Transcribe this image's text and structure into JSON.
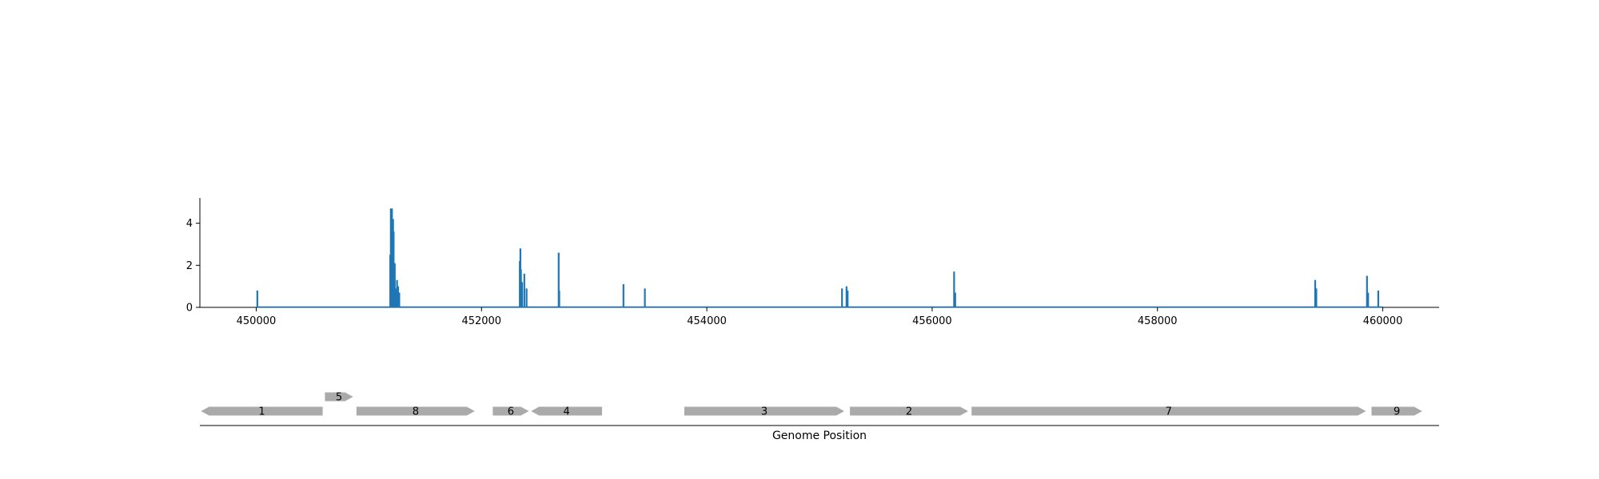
{
  "chart_data": [
    {
      "type": "bar",
      "title": "",
      "xlabel": "",
      "ylabel": "",
      "xlim": [
        449500,
        460500
      ],
      "ylim": [
        0,
        5.2
      ],
      "x_ticks": [
        450000,
        452000,
        454000,
        456000,
        458000,
        460000
      ],
      "y_ticks": [
        0,
        2,
        4
      ],
      "grid": false,
      "color": "#1f77b4",
      "points": [
        {
          "x": 450010,
          "y": 0.8
        },
        {
          "x": 451190,
          "y": 2.5
        },
        {
          "x": 451195,
          "y": 4.7
        },
        {
          "x": 451200,
          "y": 4.4
        },
        {
          "x": 451205,
          "y": 4.7
        },
        {
          "x": 451210,
          "y": 3.9
        },
        {
          "x": 451215,
          "y": 4.2
        },
        {
          "x": 451220,
          "y": 3.6
        },
        {
          "x": 451225,
          "y": 1.2
        },
        {
          "x": 451230,
          "y": 2.1
        },
        {
          "x": 451240,
          "y": 0.9
        },
        {
          "x": 451250,
          "y": 1.3
        },
        {
          "x": 451255,
          "y": 0.7
        },
        {
          "x": 451260,
          "y": 1.0
        },
        {
          "x": 451270,
          "y": 0.7
        },
        {
          "x": 452340,
          "y": 2.2
        },
        {
          "x": 452345,
          "y": 2.8
        },
        {
          "x": 452350,
          "y": 1.8
        },
        {
          "x": 452360,
          "y": 1.2
        },
        {
          "x": 452380,
          "y": 1.6
        },
        {
          "x": 452400,
          "y": 0.9
        },
        {
          "x": 452685,
          "y": 2.6
        },
        {
          "x": 452690,
          "y": 0.8
        },
        {
          "x": 453260,
          "y": 1.1
        },
        {
          "x": 453450,
          "y": 0.9
        },
        {
          "x": 455200,
          "y": 0.9
        },
        {
          "x": 455240,
          "y": 1.0
        },
        {
          "x": 455250,
          "y": 0.8
        },
        {
          "x": 456195,
          "y": 1.7
        },
        {
          "x": 456205,
          "y": 0.7
        },
        {
          "x": 459400,
          "y": 1.3
        },
        {
          "x": 459410,
          "y": 0.9
        },
        {
          "x": 459860,
          "y": 1.5
        },
        {
          "x": 459870,
          "y": 0.7
        },
        {
          "x": 459960,
          "y": 0.8
        }
      ]
    },
    {
      "type": "gene-track",
      "xlabel": "Genome Position",
      "xlim": [
        449500,
        460500
      ],
      "color": "#aaaaaa",
      "genes": [
        {
          "label": "1",
          "start": 449510,
          "end": 450590,
          "strand": "-",
          "row": 0
        },
        {
          "label": "5",
          "start": 450610,
          "end": 450860,
          "strand": "+",
          "row": 1
        },
        {
          "label": "8",
          "start": 450890,
          "end": 451940,
          "strand": "+",
          "row": 0
        },
        {
          "label": "6",
          "start": 452100,
          "end": 452420,
          "strand": "+",
          "row": 0
        },
        {
          "label": "4",
          "start": 452440,
          "end": 453070,
          "strand": "-",
          "row": 0
        },
        {
          "label": "3",
          "start": 453800,
          "end": 455220,
          "strand": "+",
          "row": 0
        },
        {
          "label": "2",
          "start": 455270,
          "end": 456320,
          "strand": "+",
          "row": 0
        },
        {
          "label": "7",
          "start": 456350,
          "end": 459850,
          "strand": "+",
          "row": 0
        },
        {
          "label": "9",
          "start": 459900,
          "end": 460350,
          "strand": "+",
          "row": 0
        }
      ]
    }
  ]
}
